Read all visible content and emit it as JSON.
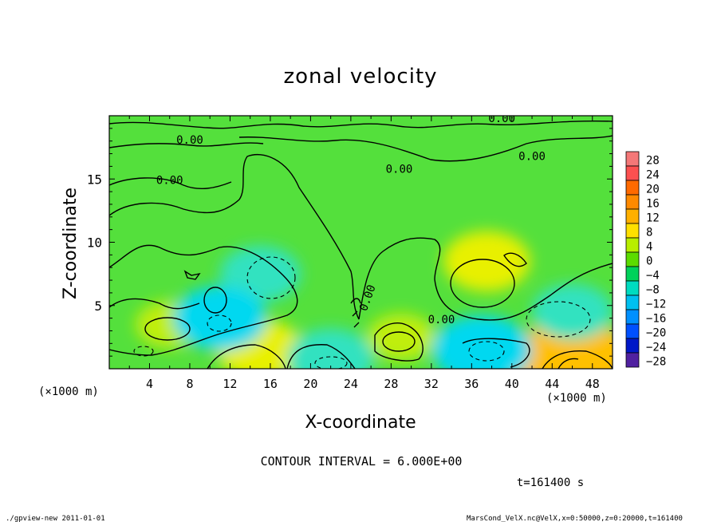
{
  "chart_data": {
    "type": "heatmap",
    "title": "zonal velocity",
    "xlabel": "X-coordinate",
    "ylabel": "Z-coordinate",
    "x_unit": "(×1000 m)",
    "y_unit": "(×1000 m)",
    "xlim": [
      0,
      50
    ],
    "ylim": [
      0,
      20
    ],
    "x_ticks": [
      "4",
      "8",
      "12",
      "16",
      "20",
      "24",
      "28",
      "32",
      "36",
      "40",
      "44",
      "48"
    ],
    "y_ticks": [
      "5",
      "10",
      "15"
    ],
    "colorbar_ticks": [
      "28",
      "24",
      "20",
      "16",
      "12",
      "8",
      "4",
      "0",
      "−4",
      "−8",
      "−12",
      "−16",
      "−20",
      "−24",
      "−28"
    ],
    "colorbar_colors": [
      "#f47878",
      "#fc5050",
      "#ff6a00",
      "#ff8a00",
      "#ffb000",
      "#ffe000",
      "#b8ee00",
      "#5cdc00",
      "#00d25a",
      "#00dcc0",
      "#00c0f0",
      "#0090ff",
      "#0050ff",
      "#0018c8",
      "#5020a0"
    ],
    "contour_labels": [
      "0.00",
      "0.00",
      "0.00",
      "0.00",
      "0.00",
      "0.00",
      "0.00"
    ],
    "features": [
      {
        "type": "max",
        "x": 37.5,
        "z": 8.5,
        "value": 8
      },
      {
        "type": "max",
        "x": 46,
        "z": 0.5,
        "value": 14
      },
      {
        "type": "max",
        "x": 15,
        "z": 1.5,
        "value": 8
      },
      {
        "type": "max",
        "x": 6,
        "z": 3.5,
        "value": 5
      },
      {
        "type": "max",
        "x": 29,
        "z": 2.5,
        "value": 5
      },
      {
        "type": "min",
        "x": 15,
        "z": 7.5,
        "value": -7
      },
      {
        "type": "min",
        "x": 46,
        "z": 4.5,
        "value": -7
      },
      {
        "type": "min",
        "x": 37,
        "z": 1.5,
        "value": -10
      },
      {
        "type": "min",
        "x": 11,
        "z": 4,
        "value": -9
      },
      {
        "type": "min",
        "x": 22,
        "z": 0.8,
        "value": -8
      }
    ]
  },
  "contour_interval": "CONTOUR INTERVAL = 6.000E+00",
  "time_label": "t=161400 s",
  "footer_left": "./gpview-new  2011-01-01",
  "footer_right": "MarsCond_VelX.nc@VelX,x=0:50000,z=0:20000,t=161400"
}
